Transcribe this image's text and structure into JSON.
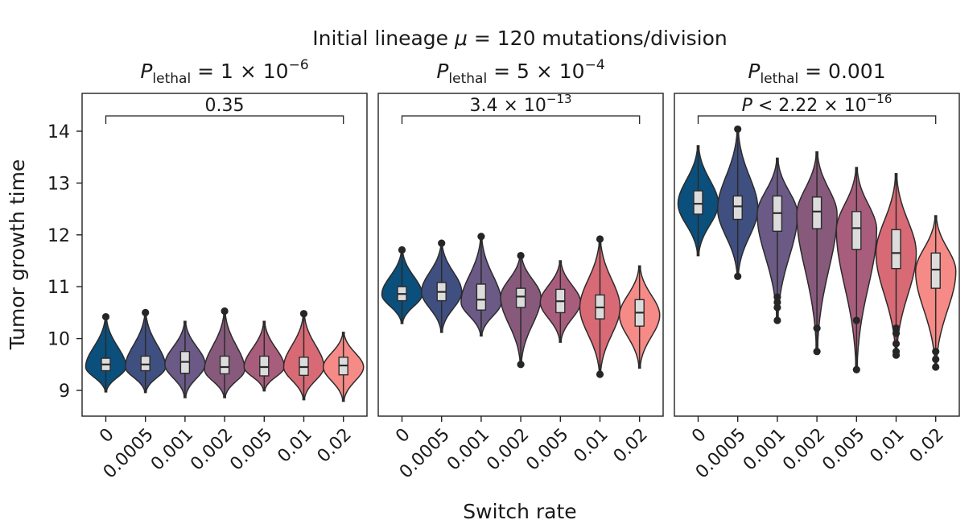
{
  "chart_data": {
    "type": "violin",
    "title": "Initial lineage μ = 120 mutations/division",
    "title_parts": {
      "before": "Initial lineage ",
      "symbol": "μ",
      "after": " = 120 mutations/division"
    },
    "xlabel": "Switch rate",
    "ylabel": "Tumor growth time",
    "ylim": [
      8.5,
      14.75
    ],
    "yticks": [
      "9",
      "10",
      "11",
      "12",
      "13",
      "14"
    ],
    "categories": [
      "0",
      "0.0005",
      "0.001",
      "0.002",
      "0.005",
      "0.01",
      "0.02"
    ],
    "colors": [
      "#0b4f7c",
      "#3f4f80",
      "#6a5a85",
      "#875a7c",
      "#a85d7d",
      "#d86a76",
      "#f58a86"
    ],
    "panels": [
      {
        "name": "plethal-1e-6",
        "p_lethal": {
          "symbol": "P",
          "sub": "lethal",
          "rest": " = 1 × 10",
          "exp": "−6"
        },
        "comparison": {
          "text": "0.35",
          "p_prefix": "",
          "base": "",
          "exp": ""
        },
        "violins": [
          {
            "min": 8.97,
            "max": 10.42,
            "q1": 9.38,
            "median": 9.5,
            "q3": 9.62,
            "mode": 9.45,
            "outliers": [
              10.42
            ]
          },
          {
            "min": 8.96,
            "max": 10.5,
            "q1": 9.38,
            "median": 9.5,
            "q3": 9.66,
            "mode": 9.45,
            "outliers": [
              10.5
            ]
          },
          {
            "min": 8.86,
            "max": 10.33,
            "q1": 9.33,
            "median": 9.55,
            "q3": 9.75,
            "mode": 9.5,
            "outliers": []
          },
          {
            "min": 8.86,
            "max": 10.53,
            "q1": 9.32,
            "median": 9.45,
            "q3": 9.66,
            "mode": 9.4,
            "outliers": [
              10.53
            ]
          },
          {
            "min": 8.99,
            "max": 10.33,
            "q1": 9.28,
            "median": 9.45,
            "q3": 9.66,
            "mode": 9.45,
            "outliers": []
          },
          {
            "min": 8.82,
            "max": 10.48,
            "q1": 9.29,
            "median": 9.45,
            "q3": 9.64,
            "mode": 9.45,
            "outliers": [
              10.48
            ]
          },
          {
            "min": 8.79,
            "max": 10.12,
            "q1": 9.3,
            "median": 9.48,
            "q3": 9.64,
            "mode": 9.45,
            "outliers": []
          }
        ]
      },
      {
        "name": "plethal-5e-4",
        "p_lethal": {
          "symbol": "P",
          "sub": "lethal",
          "rest": " = 5 × 10",
          "exp": "−4"
        },
        "comparison": {
          "text": "",
          "p_prefix": "",
          "base": "3.4 × 10",
          "exp": "−13"
        },
        "violins": [
          {
            "min": 10.29,
            "max": 11.71,
            "q1": 10.73,
            "median": 10.86,
            "q3": 11.0,
            "mode": 10.85,
            "outliers": [
              11.71
            ]
          },
          {
            "min": 10.12,
            "max": 11.84,
            "q1": 10.73,
            "median": 10.9,
            "q3": 11.08,
            "mode": 10.9,
            "outliers": [
              11.84
            ]
          },
          {
            "min": 10.05,
            "max": 11.97,
            "q1": 10.55,
            "median": 10.75,
            "q3": 11.05,
            "mode": 10.7,
            "outliers": [
              11.97
            ]
          },
          {
            "min": 9.5,
            "max": 11.63,
            "q1": 10.6,
            "median": 10.81,
            "q3": 10.97,
            "mode": 10.8,
            "outliers": [
              11.6,
              9.5
            ]
          },
          {
            "min": 9.93,
            "max": 11.5,
            "q1": 10.5,
            "median": 10.72,
            "q3": 10.95,
            "mode": 10.7,
            "outliers": []
          },
          {
            "min": 9.31,
            "max": 11.92,
            "q1": 10.38,
            "median": 10.6,
            "q3": 10.84,
            "mode": 10.6,
            "outliers": [
              11.92,
              9.31
            ]
          },
          {
            "min": 9.43,
            "max": 11.4,
            "q1": 10.24,
            "median": 10.5,
            "q3": 10.75,
            "mode": 10.45,
            "outliers": []
          }
        ]
      },
      {
        "name": "plethal-0.001",
        "p_lethal": {
          "symbol": "P",
          "sub": "lethal",
          "rest": " = 0.001",
          "exp": ""
        },
        "comparison": {
          "text": "",
          "p_prefix": "P",
          "base": " < 2.22 × 10",
          "exp": "−16"
        },
        "violins": [
          {
            "min": 11.6,
            "max": 13.72,
            "q1": 12.4,
            "median": 12.6,
            "q3": 12.85,
            "mode": 12.6,
            "outliers": []
          },
          {
            "min": 11.2,
            "max": 14.04,
            "q1": 12.3,
            "median": 12.55,
            "q3": 12.75,
            "mode": 12.5,
            "outliers": [
              14.04,
              11.2
            ]
          },
          {
            "min": 10.35,
            "max": 13.48,
            "q1": 12.07,
            "median": 12.42,
            "q3": 12.75,
            "mode": 12.4,
            "outliers": [
              10.8,
              10.7,
              10.6,
              10.35
            ]
          },
          {
            "min": 9.75,
            "max": 13.6,
            "q1": 12.12,
            "median": 12.45,
            "q3": 12.73,
            "mode": 12.4,
            "outliers": [
              10.2,
              9.75
            ]
          },
          {
            "min": 9.4,
            "max": 13.3,
            "q1": 11.72,
            "median": 12.13,
            "q3": 12.45,
            "mode": 12.1,
            "outliers": [
              10.35,
              9.4
            ]
          },
          {
            "min": 9.68,
            "max": 13.18,
            "q1": 11.35,
            "median": 11.65,
            "q3": 12.1,
            "mode": 11.65,
            "outliers": [
              10.2,
              10.1,
              9.9,
              9.75,
              9.68
            ]
          },
          {
            "min": 9.45,
            "max": 12.37,
            "q1": 10.97,
            "median": 11.33,
            "q3": 11.65,
            "mode": 11.3,
            "outliers": [
              9.75,
              9.6,
              9.45
            ]
          }
        ]
      }
    ]
  }
}
